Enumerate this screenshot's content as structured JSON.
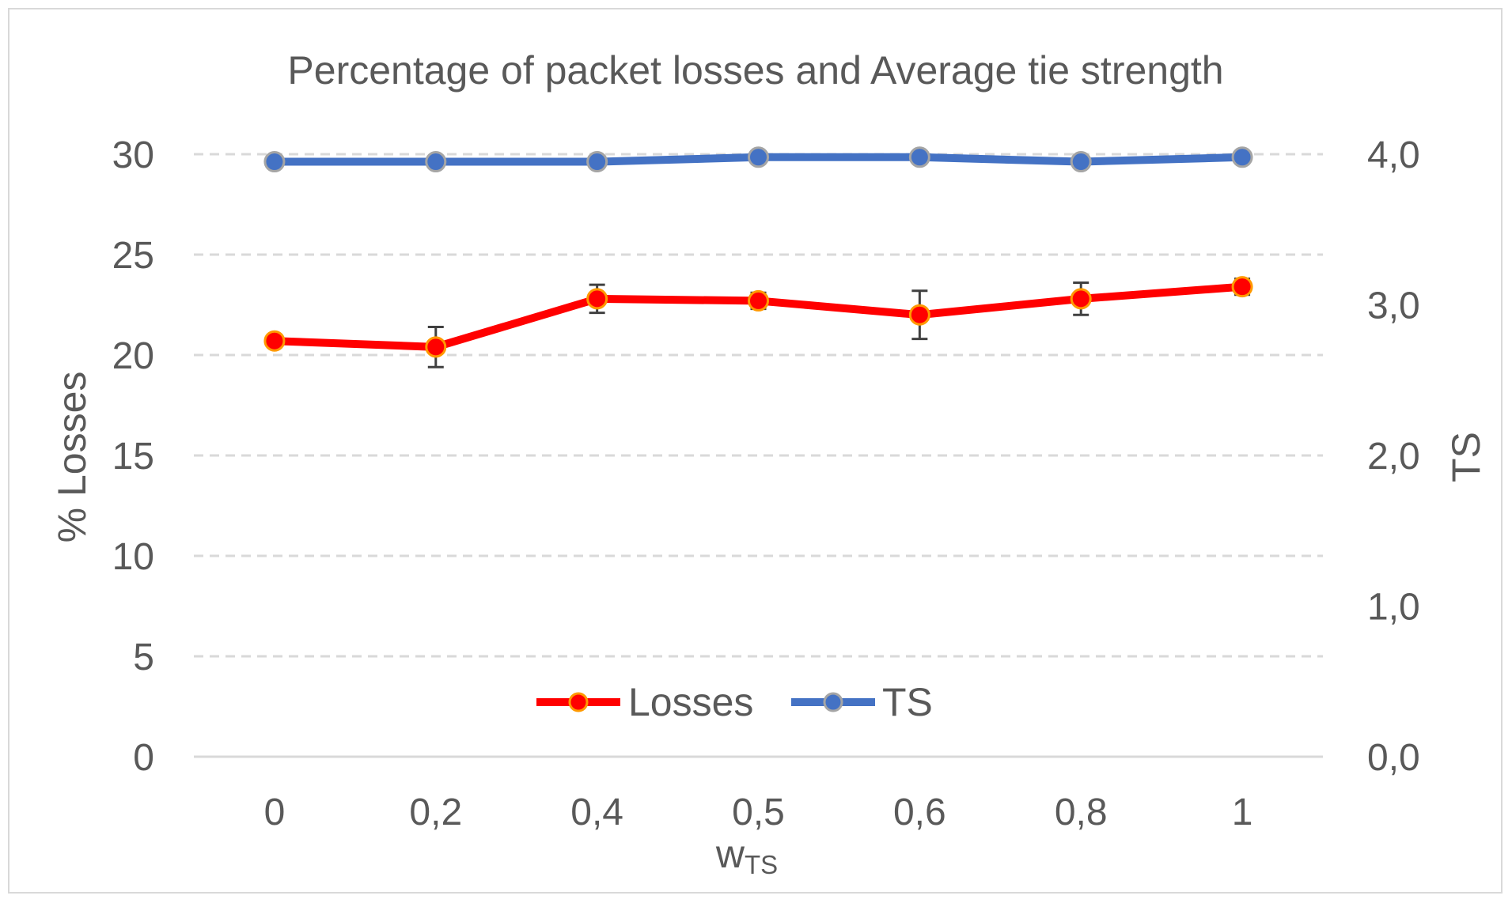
{
  "chart_data": {
    "type": "line",
    "title": "Percentage of packet losses and Average tie strength",
    "categories": [
      "0",
      "0,2",
      "0,4",
      "0,5",
      "0,6",
      "0,8",
      "1"
    ],
    "xlabel_main": "w",
    "xlabel_sub": "TS",
    "ylabel_left": "% Losses",
    "ylabel_right": "TS",
    "y_left": {
      "min": 0,
      "max": 30,
      "ticks": [
        0,
        5,
        10,
        15,
        20,
        25,
        30
      ],
      "tick_labels": [
        "0",
        "5",
        "10",
        "15",
        "20",
        "25",
        "30"
      ]
    },
    "y_right": {
      "min": 0,
      "max": 4,
      "ticks": [
        0,
        1,
        2,
        3,
        4
      ],
      "tick_labels": [
        "0,0",
        "1,0",
        "2,0",
        "3,0",
        "4,0"
      ]
    },
    "grid": true,
    "legend_position": "bottom-center",
    "series": [
      {
        "name": "Losses",
        "axis": "left",
        "color": "#ff0000",
        "marker_border": "#ff9900",
        "values": [
          20.7,
          20.4,
          22.8,
          22.7,
          22.0,
          22.8,
          23.4
        ],
        "errors": [
          0.0,
          1.0,
          0.7,
          0.4,
          1.2,
          0.8,
          0.4
        ]
      },
      {
        "name": "TS",
        "axis": "right",
        "color": "#4472c4",
        "marker_border": "#a5a5a5",
        "values": [
          3.95,
          3.95,
          3.95,
          3.98,
          3.98,
          3.95,
          3.98
        ]
      }
    ]
  }
}
